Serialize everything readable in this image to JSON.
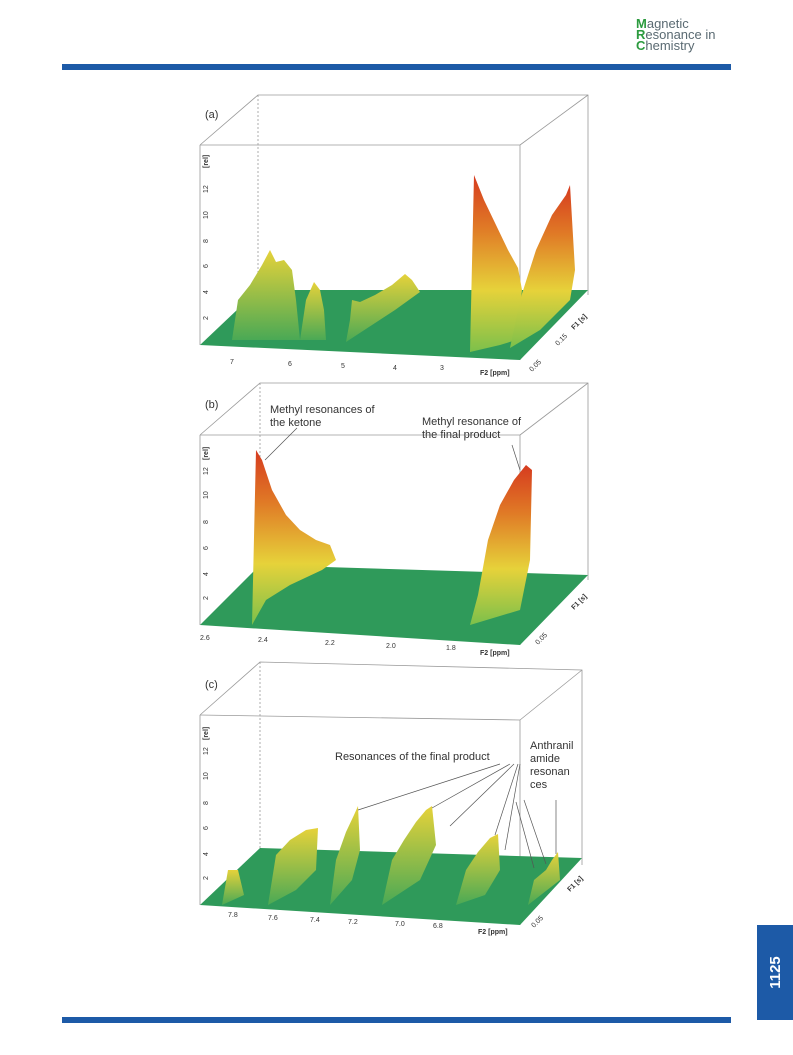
{
  "journal": {
    "line1_cap": "M",
    "line1_rest": "agnetic",
    "line2_cap": "R",
    "line2_rest": "esonance in",
    "line3_cap": "C",
    "line3_rest": "hemistry"
  },
  "page_number": "1125",
  "panels": [
    {
      "label": "(a)",
      "y_axis_label": "[rel]",
      "y_ticks": [
        "2",
        "4",
        "6",
        "8",
        "10",
        "12"
      ],
      "x_ticks": [
        "7",
        "6",
        "5",
        "4",
        "3"
      ],
      "x_axis_label": "F2 [ppm]",
      "depth_ticks": [
        "0.05",
        "0.15"
      ],
      "depth_label": "F1 [s]",
      "annotations": []
    },
    {
      "label": "(b)",
      "y_axis_label": "[rel]",
      "y_ticks": [
        "2",
        "4",
        "6",
        "8",
        "10",
        "12"
      ],
      "x_ticks": [
        "2.6",
        "2.4",
        "2.2",
        "2.0",
        "1.8"
      ],
      "x_axis_label": "F2 [ppm]",
      "depth_ticks": [
        "0.05"
      ],
      "depth_label": "F1 [s]",
      "annotations": [
        "Methyl resonances of",
        "the ketone",
        "Methyl resonance of",
        "the final product"
      ]
    },
    {
      "label": "(c)",
      "y_axis_label": "[rel]",
      "y_ticks": [
        "2",
        "4",
        "6",
        "8",
        "10",
        "12"
      ],
      "x_ticks": [
        "7.8",
        "7.6",
        "7.4",
        "7.2",
        "7.0",
        "6.8"
      ],
      "x_axis_label": "F2 [ppm]",
      "depth_ticks": [
        "0.05"
      ],
      "depth_label": "F1 [s]",
      "annotations": [
        "Resonances of the final product",
        "Anthranil",
        "amide",
        "resonan",
        "ces"
      ]
    }
  ],
  "colors": {
    "brand_blue": "#1d5aa7",
    "plane_green": "#2f9a5a",
    "peak_red": "#d63b1f",
    "peak_yellow": "#e6d23a"
  }
}
